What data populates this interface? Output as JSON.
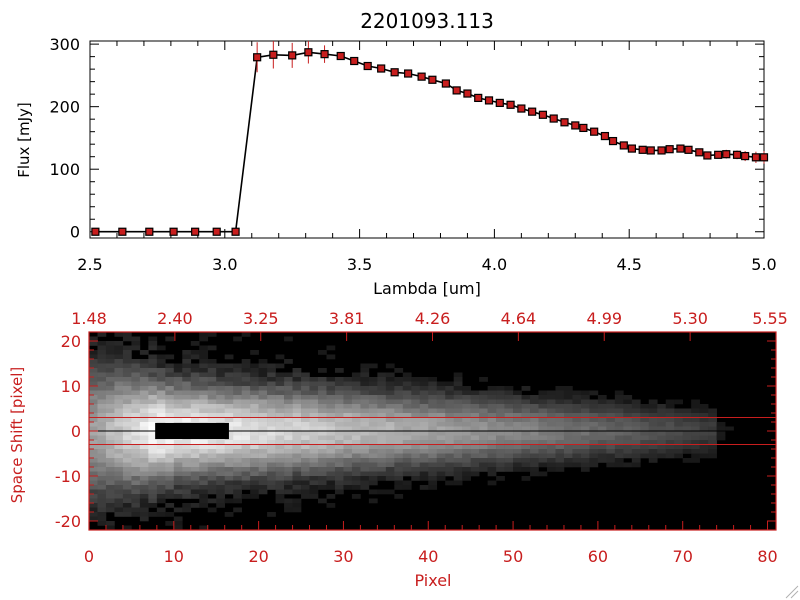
{
  "colors": {
    "spectrum_axes": "#000000",
    "image_axes": "#c81e1e",
    "points": "#c81e1e",
    "errorbars": "#c81e1e",
    "line": "#000000",
    "aperture_lines": "#c81e1e"
  },
  "chart_data": [
    {
      "type": "scatter",
      "title": "2201093.113",
      "xlabel": "Lambda [um]",
      "ylabel": "Flux [mJy]",
      "xlim": [
        2.5,
        5.0
      ],
      "ylim": [
        -10,
        305
      ],
      "xticks": [
        "2.5",
        "3.0",
        "3.5",
        "4.0",
        "4.5",
        "5.0"
      ],
      "yticks": [
        "0",
        "100",
        "200",
        "300"
      ],
      "grid": false,
      "series": [
        {
          "x": [
            2.52,
            2.62,
            2.72,
            2.81,
            2.89,
            2.97,
            3.04,
            3.12,
            3.18,
            3.25,
            3.31,
            3.37,
            3.43,
            3.48,
            3.53,
            3.58,
            3.63,
            3.68,
            3.73,
            3.77,
            3.82,
            3.86,
            3.9,
            3.94,
            3.98,
            4.02,
            4.06,
            4.1,
            4.14,
            4.18,
            4.22,
            4.26,
            4.3,
            4.33,
            4.37,
            4.41,
            4.44,
            4.48,
            4.51,
            4.55,
            4.58,
            4.62,
            4.65,
            4.69,
            4.72,
            4.76,
            4.79,
            4.83,
            4.86,
            4.9,
            4.93,
            4.97,
            5.0
          ],
          "y": [
            0,
            0,
            0,
            0,
            0,
            0,
            0,
            279,
            283,
            282,
            287,
            284,
            281,
            273,
            265,
            261,
            255,
            253,
            248,
            243,
            237,
            226,
            221,
            214,
            210,
            206,
            203,
            197,
            192,
            187,
            181,
            175,
            170,
            166,
            160,
            153,
            145,
            138,
            133,
            131,
            130,
            130,
            132,
            133,
            131,
            127,
            122,
            123,
            124,
            123,
            121,
            119,
            119
          ],
          "yerr": [
            0,
            0,
            0,
            0,
            0,
            0,
            0,
            24,
            22,
            20,
            18,
            14,
            6,
            5,
            4,
            4,
            4,
            4,
            4,
            4,
            4,
            4,
            4,
            4,
            4,
            4,
            4,
            4,
            4,
            4,
            4,
            4,
            4,
            4,
            4,
            4,
            4,
            4,
            4,
            4,
            4,
            4,
            4,
            4,
            4,
            5,
            5,
            6,
            7,
            7,
            8,
            9,
            10
          ]
        }
      ]
    },
    {
      "type": "heatmap",
      "xlabel": "Pixel",
      "ylabel": "Space Shift [pixel]",
      "xlim": [
        0,
        81
      ],
      "ylim": [
        -22,
        22
      ],
      "xticks": [
        "0",
        "10",
        "20",
        "30",
        "40",
        "50",
        "60",
        "70",
        "80"
      ],
      "yticks": [
        "-20",
        "-10",
        "0",
        "10",
        "20"
      ],
      "top_ticks": [
        "1.48",
        "2.40",
        "3.25",
        "3.81",
        "4.26",
        "4.64",
        "4.99",
        "5.30",
        "5.55"
      ],
      "aperture_lines": [
        3,
        -3
      ],
      "center_line": 0
    }
  ]
}
